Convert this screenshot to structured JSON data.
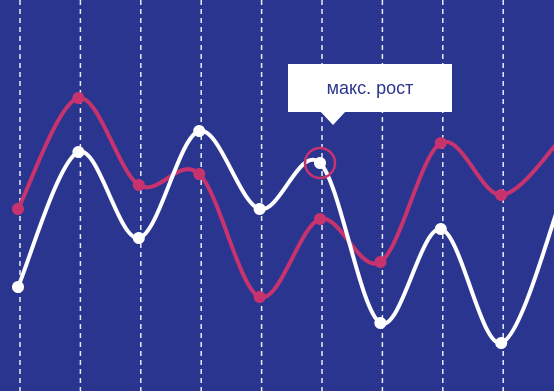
{
  "chart_data": {
    "type": "line",
    "annotation": "макс. рост",
    "categories": [
      null,
      null,
      null,
      null,
      null,
      null,
      null,
      null,
      null,
      null
    ],
    "series": [
      {
        "color": "#ffffff",
        "values": [
          104,
          239,
          153,
          260,
          182,
          228,
          68,
          162,
          48,
          193
        ]
      },
      {
        "color": "#c8336e",
        "values": [
          182,
          293,
          206,
          217,
          94,
          172,
          129,
          248,
          196,
          253
        ]
      }
    ],
    "ylim": [
      0,
      391
    ]
  }
}
